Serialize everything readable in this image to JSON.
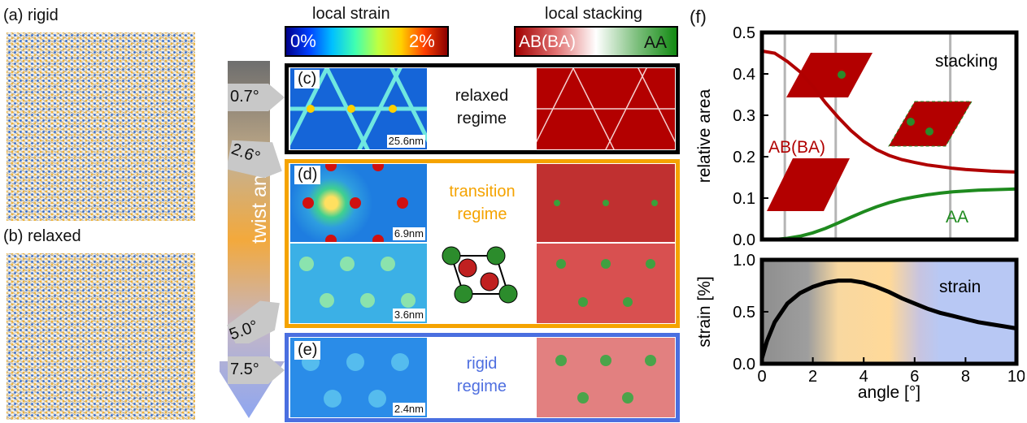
{
  "panels": {
    "a": "(a) rigid",
    "b": "(b) relaxed",
    "c": "(c)",
    "d": "(d)",
    "e": "(e)",
    "f": "(f)"
  },
  "colorbars": {
    "strain_title": "local strain",
    "strain_min": "0%",
    "strain_max": "2%",
    "stacking_title": "local stacking",
    "stacking_left": "AB(BA)",
    "stacking_right": "AA"
  },
  "twist_axis": {
    "label": "twist angle",
    "markers": [
      "0.7°",
      "2.6°",
      "5.0°",
      "7.5°"
    ]
  },
  "rows": {
    "c": {
      "scale": "25.6nm",
      "regime": [
        "relaxed",
        "regime"
      ],
      "regime_color": "#111111",
      "border_color": "#000000"
    },
    "d": {
      "scale_top": "6.9nm",
      "scale_bottom": "3.6nm",
      "regime": [
        "transition",
        "regime"
      ],
      "regime_color": "#f5a300",
      "border_color": "#f5a300"
    },
    "e": {
      "scale": "2.4nm",
      "regime": [
        "rigid",
        "regime"
      ],
      "regime_color": "#4f6fe0",
      "border_color": "#4a6fe0"
    }
  },
  "chart_data": [
    {
      "type": "line",
      "ylabel": "relative area",
      "xlim": [
        0,
        10
      ],
      "ylim": [
        0.0,
        0.5
      ],
      "yticks": [
        "0.0",
        "0.1",
        "0.2",
        "0.3",
        "0.4",
        "0.5"
      ],
      "vlines": [
        0.9,
        2.9,
        7.4
      ],
      "inset_label": "stacking",
      "series": [
        {
          "name": "AB(BA)",
          "color": "#b00000",
          "x": [
            0,
            0.5,
            1,
            1.5,
            2,
            2.5,
            3,
            3.5,
            4,
            4.5,
            5,
            5.5,
            6,
            6.5,
            7,
            7.5,
            8,
            8.5,
            9,
            9.5,
            10
          ],
          "y": [
            0.455,
            0.45,
            0.43,
            0.405,
            0.37,
            0.33,
            0.295,
            0.263,
            0.237,
            0.217,
            0.203,
            0.193,
            0.186,
            0.18,
            0.176,
            0.172,
            0.169,
            0.167,
            0.165,
            0.164,
            0.163
          ]
        },
        {
          "name": "AA",
          "color": "#1e8a1e",
          "x": [
            0,
            0.5,
            1,
            1.5,
            2,
            2.5,
            3,
            3.5,
            4,
            4.5,
            5,
            5.5,
            6,
            6.5,
            7,
            7.5,
            8,
            8.5,
            9,
            9.5,
            10
          ],
          "y": [
            0.0,
            0.0,
            0.003,
            0.008,
            0.016,
            0.027,
            0.04,
            0.054,
            0.067,
            0.079,
            0.089,
            0.097,
            0.103,
            0.108,
            0.112,
            0.115,
            0.117,
            0.119,
            0.12,
            0.121,
            0.122
          ]
        }
      ]
    },
    {
      "type": "line",
      "xlabel": "angle [°]",
      "ylabel": "strain [%]",
      "xlim": [
        0,
        10
      ],
      "ylim": [
        0.0,
        1.0
      ],
      "xticks": [
        "0",
        "2",
        "4",
        "6",
        "8",
        "10"
      ],
      "yticks": [
        "0.0",
        "0.5",
        "1.0"
      ],
      "inset_label": "strain",
      "series": [
        {
          "name": "strain",
          "color": "#000000",
          "x": [
            0,
            0.2,
            0.5,
            1,
            1.5,
            2,
            2.5,
            3,
            3.5,
            4,
            4.5,
            5,
            5.5,
            6,
            6.5,
            7,
            7.5,
            8,
            8.5,
            9,
            9.5,
            10
          ],
          "y": [
            0.05,
            0.22,
            0.4,
            0.58,
            0.68,
            0.74,
            0.78,
            0.8,
            0.8,
            0.78,
            0.74,
            0.69,
            0.63,
            0.58,
            0.53,
            0.49,
            0.46,
            0.43,
            0.4,
            0.38,
            0.36,
            0.34
          ]
        }
      ]
    }
  ]
}
